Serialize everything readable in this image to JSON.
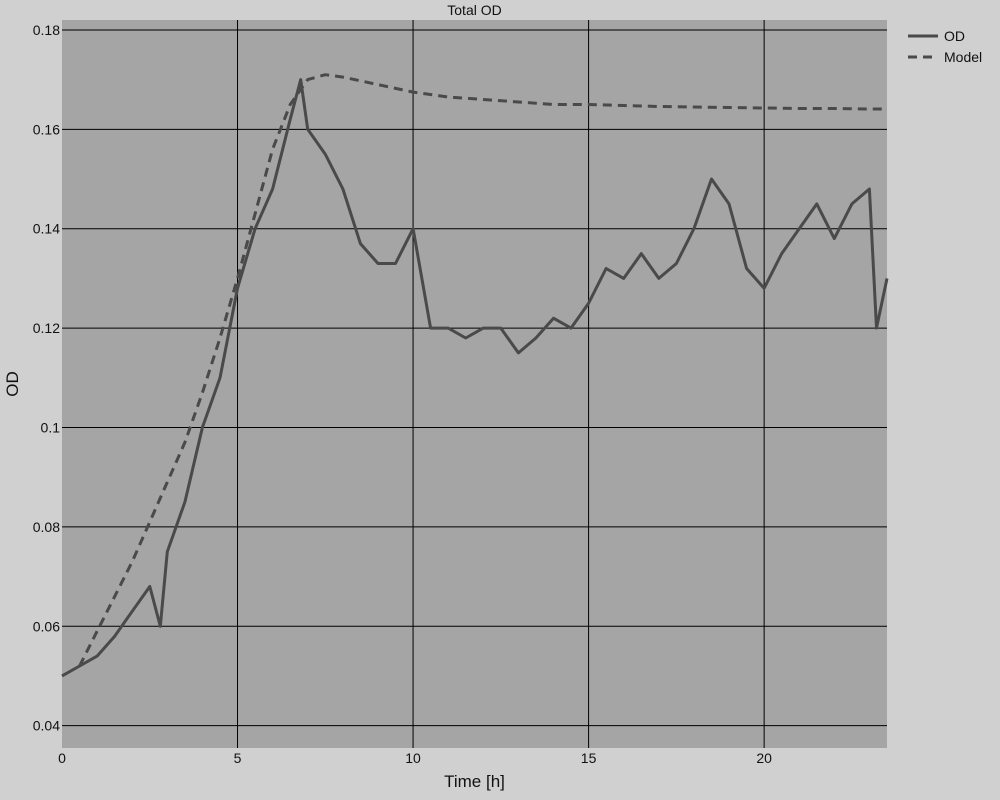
{
  "chart_data": {
    "type": "line",
    "title": "Total OD",
    "xlabel": "Time [h]",
    "ylabel": "OD",
    "xlim": [
      0,
      23.5
    ],
    "ylim": [
      0.0355,
      0.182
    ],
    "x_ticks": [
      0,
      5,
      10,
      15,
      20
    ],
    "x_tick_labels": [
      "0",
      "5",
      "10",
      "15",
      "20"
    ],
    "y_ticks": [
      0.04,
      0.06,
      0.08,
      0.1,
      0.12,
      0.14,
      0.16,
      0.18
    ],
    "y_tick_labels": [
      "0.04",
      "0.06",
      "0.08",
      "0.1",
      "0.12",
      "0.14",
      "0.16",
      "0.18"
    ],
    "grid": true,
    "legend_position": "outside-top-right",
    "colors": {
      "background": "#d0d0d0",
      "plot_area": "#a5a5a5",
      "series": "#4a4a4a",
      "grid": "#000000"
    },
    "series": [
      {
        "name": "OD",
        "style": "solid",
        "x": [
          0,
          0.5,
          1,
          1.5,
          2,
          2.5,
          2.8,
          3,
          3.5,
          4,
          4.5,
          5,
          5.5,
          6,
          6.5,
          6.8,
          7,
          7.5,
          8,
          8.5,
          9,
          9.5,
          10,
          10.5,
          11,
          11.5,
          12,
          12.5,
          13,
          13.5,
          14,
          14.5,
          15,
          15.5,
          16,
          16.5,
          17,
          17.5,
          18,
          18.5,
          19,
          19.5,
          20,
          20.5,
          21,
          21.5,
          22,
          22.5,
          23,
          23.2,
          23.5
        ],
        "y": [
          0.05,
          0.052,
          0.054,
          0.058,
          0.063,
          0.068,
          0.06,
          0.075,
          0.085,
          0.1,
          0.11,
          0.128,
          0.14,
          0.148,
          0.162,
          0.17,
          0.16,
          0.155,
          0.148,
          0.137,
          0.133,
          0.133,
          0.14,
          0.12,
          0.12,
          0.118,
          0.12,
          0.12,
          0.115,
          0.118,
          0.122,
          0.12,
          0.125,
          0.132,
          0.13,
          0.135,
          0.13,
          0.133,
          0.14,
          0.15,
          0.145,
          0.132,
          0.128,
          0.135,
          0.14,
          0.145,
          0.138,
          0.145,
          0.148,
          0.12,
          0.13
        ]
      },
      {
        "name": "Model",
        "style": "dashed",
        "x": [
          0.5,
          1,
          1.5,
          2,
          2.5,
          3,
          3.5,
          4,
          4.5,
          5,
          5.5,
          6,
          6.5,
          7,
          7.5,
          8,
          9,
          10,
          11,
          12,
          13,
          14,
          15,
          16,
          17,
          18,
          19,
          20,
          21,
          22,
          23,
          23.5
        ],
        "y": [
          0.052,
          0.059,
          0.066,
          0.073,
          0.081,
          0.089,
          0.097,
          0.107,
          0.118,
          0.13,
          0.143,
          0.156,
          0.165,
          0.17,
          0.171,
          0.1705,
          0.169,
          0.1675,
          0.1665,
          0.166,
          0.1655,
          0.165,
          0.165,
          0.1648,
          0.1646,
          0.1645,
          0.1644,
          0.1643,
          0.1642,
          0.1642,
          0.1641,
          0.1641
        ]
      }
    ]
  }
}
